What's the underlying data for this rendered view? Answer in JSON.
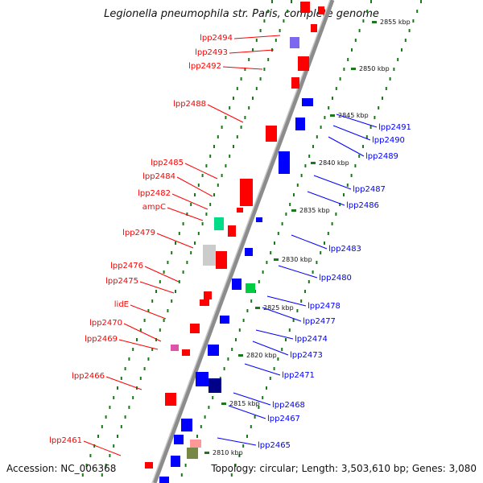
{
  "title": "Legionella pneumophila str. Paris, complete genome",
  "accession": "Accession: NC_006368",
  "summary": "Topology: circular; Length: 3,503,610 bp; Genes: 3,080",
  "colors": {
    "plus_strand": "#ff0000",
    "minus_strand": "#0000ff",
    "axis": "#8c8c8c",
    "ruler": "#1a7a1a"
  },
  "ruler_ticks": [
    "2855 kbp",
    "2850 kbp",
    "2845 kbp",
    "2840 kbp",
    "2835 kbp",
    "2830 kbp",
    "2825 kbp",
    "2820 kbp",
    "2815 kbp",
    "2810 kbp"
  ],
  "left_labels": [
    "lpp2494",
    "lpp2493",
    "lpp2492",
    "lpp2488",
    "lpp2485",
    "lpp2484",
    "lpp2482",
    "ampC",
    "lpp2479",
    "lpp2476",
    "lpp2475",
    "lidE",
    "lpp2470",
    "lpp2469",
    "lpp2466",
    "lpp2461"
  ],
  "right_labels": [
    "lpp2491",
    "lpp2490",
    "lpp2489",
    "lpp2487",
    "lpp2486",
    "lpp2483",
    "lpp2480",
    "lpp2478",
    "lpp2477",
    "lpp2474",
    "lpp2473",
    "lpp2471",
    "lpp2468",
    "lpp2467",
    "lpp2465"
  ]
}
